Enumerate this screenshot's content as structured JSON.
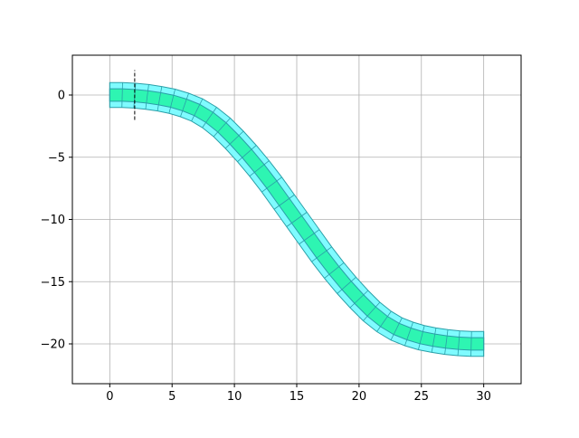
{
  "chart_data": {
    "type": "band",
    "x": [
      0,
      1,
      2,
      3,
      4,
      5,
      6,
      7,
      8,
      9,
      10,
      11,
      12,
      13,
      14,
      15,
      16,
      17,
      18,
      19,
      20,
      21,
      22,
      23,
      24,
      25,
      26,
      27,
      28,
      29,
      30
    ],
    "y": [
      0,
      0,
      -0.05,
      -0.15,
      -0.3,
      -0.5,
      -0.8,
      -1.2,
      -1.8,
      -2.6,
      -3.6,
      -4.7,
      -5.9,
      -7.2,
      -8.6,
      -10,
      -11.4,
      -12.8,
      -14.1,
      -15.3,
      -16.4,
      -17.4,
      -18.2,
      -18.8,
      -19.2,
      -19.5,
      -19.7,
      -19.85,
      -19.95,
      -20,
      -20
    ],
    "bands": [
      {
        "half_width": 1,
        "color": "#7ffbff",
        "edge_color": "#2a9fa8"
      },
      {
        "half_width": 0.5,
        "color": "#2ef5b2",
        "edge_color": "#2a9fa8"
      }
    ],
    "marker": {
      "x": 2,
      "y": [
        -2,
        2
      ]
    },
    "xlim": [
      -3,
      33
    ],
    "ylim": [
      -23.2,
      3.2
    ],
    "xticks": [
      0,
      5,
      10,
      15,
      20,
      25,
      30
    ],
    "yticks": [
      {
        "value": 0,
        "label": "0"
      },
      {
        "value": -5,
        "label": "−5"
      },
      {
        "value": -10,
        "label": "−10"
      },
      {
        "value": -15,
        "label": "−15"
      },
      {
        "value": -20,
        "label": "−20"
      }
    ],
    "grid": true
  }
}
